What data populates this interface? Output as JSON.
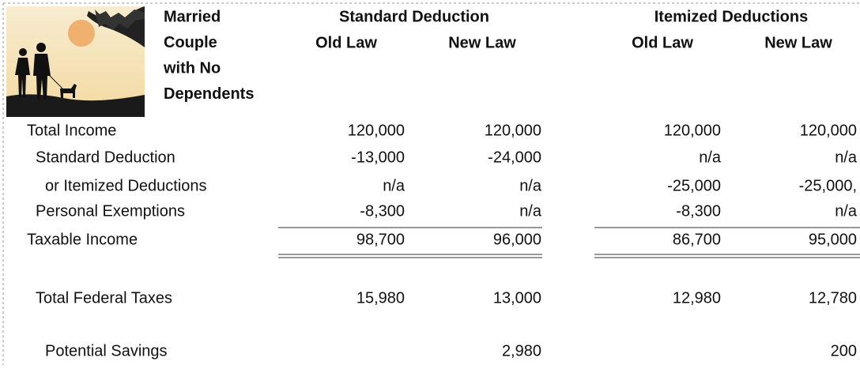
{
  "header": {
    "label": [
      "Married",
      "Couple",
      "with No",
      "Dependents"
    ],
    "groups": [
      {
        "title": "Standard Deduction",
        "columns": [
          "Old Law",
          "New Law"
        ]
      },
      {
        "title": "Itemized Deductions",
        "columns": [
          "Old Law",
          "New Law"
        ]
      }
    ]
  },
  "table": {
    "rows": [
      {
        "label": "Total Income",
        "cells": [
          "120,000",
          "120,000",
          "120,000",
          "120,000"
        ]
      },
      {
        "label": "Standard Deduction",
        "cells": [
          "-13,000",
          "-24,000",
          "n/a",
          "n/a"
        ]
      },
      {
        "label": "or Itemized Deductions",
        "cells": [
          "n/a",
          "n/a",
          "-25,000",
          "-25,000,"
        ]
      },
      {
        "label": "Personal Exemptions",
        "cells": [
          "-8,300",
          "n/a",
          "-8,300",
          "n/a"
        ]
      },
      {
        "label": "Taxable Income",
        "cells": [
          "98,700",
          "96,000",
          "86,700",
          "95,000"
        ]
      },
      {
        "label": "Total Federal Taxes",
        "cells": [
          "15,980",
          "13,000",
          "12,980",
          "12,780"
        ]
      },
      {
        "label": "Potential Savings",
        "cells": [
          null,
          "2,980",
          null,
          "200"
        ]
      }
    ]
  }
}
